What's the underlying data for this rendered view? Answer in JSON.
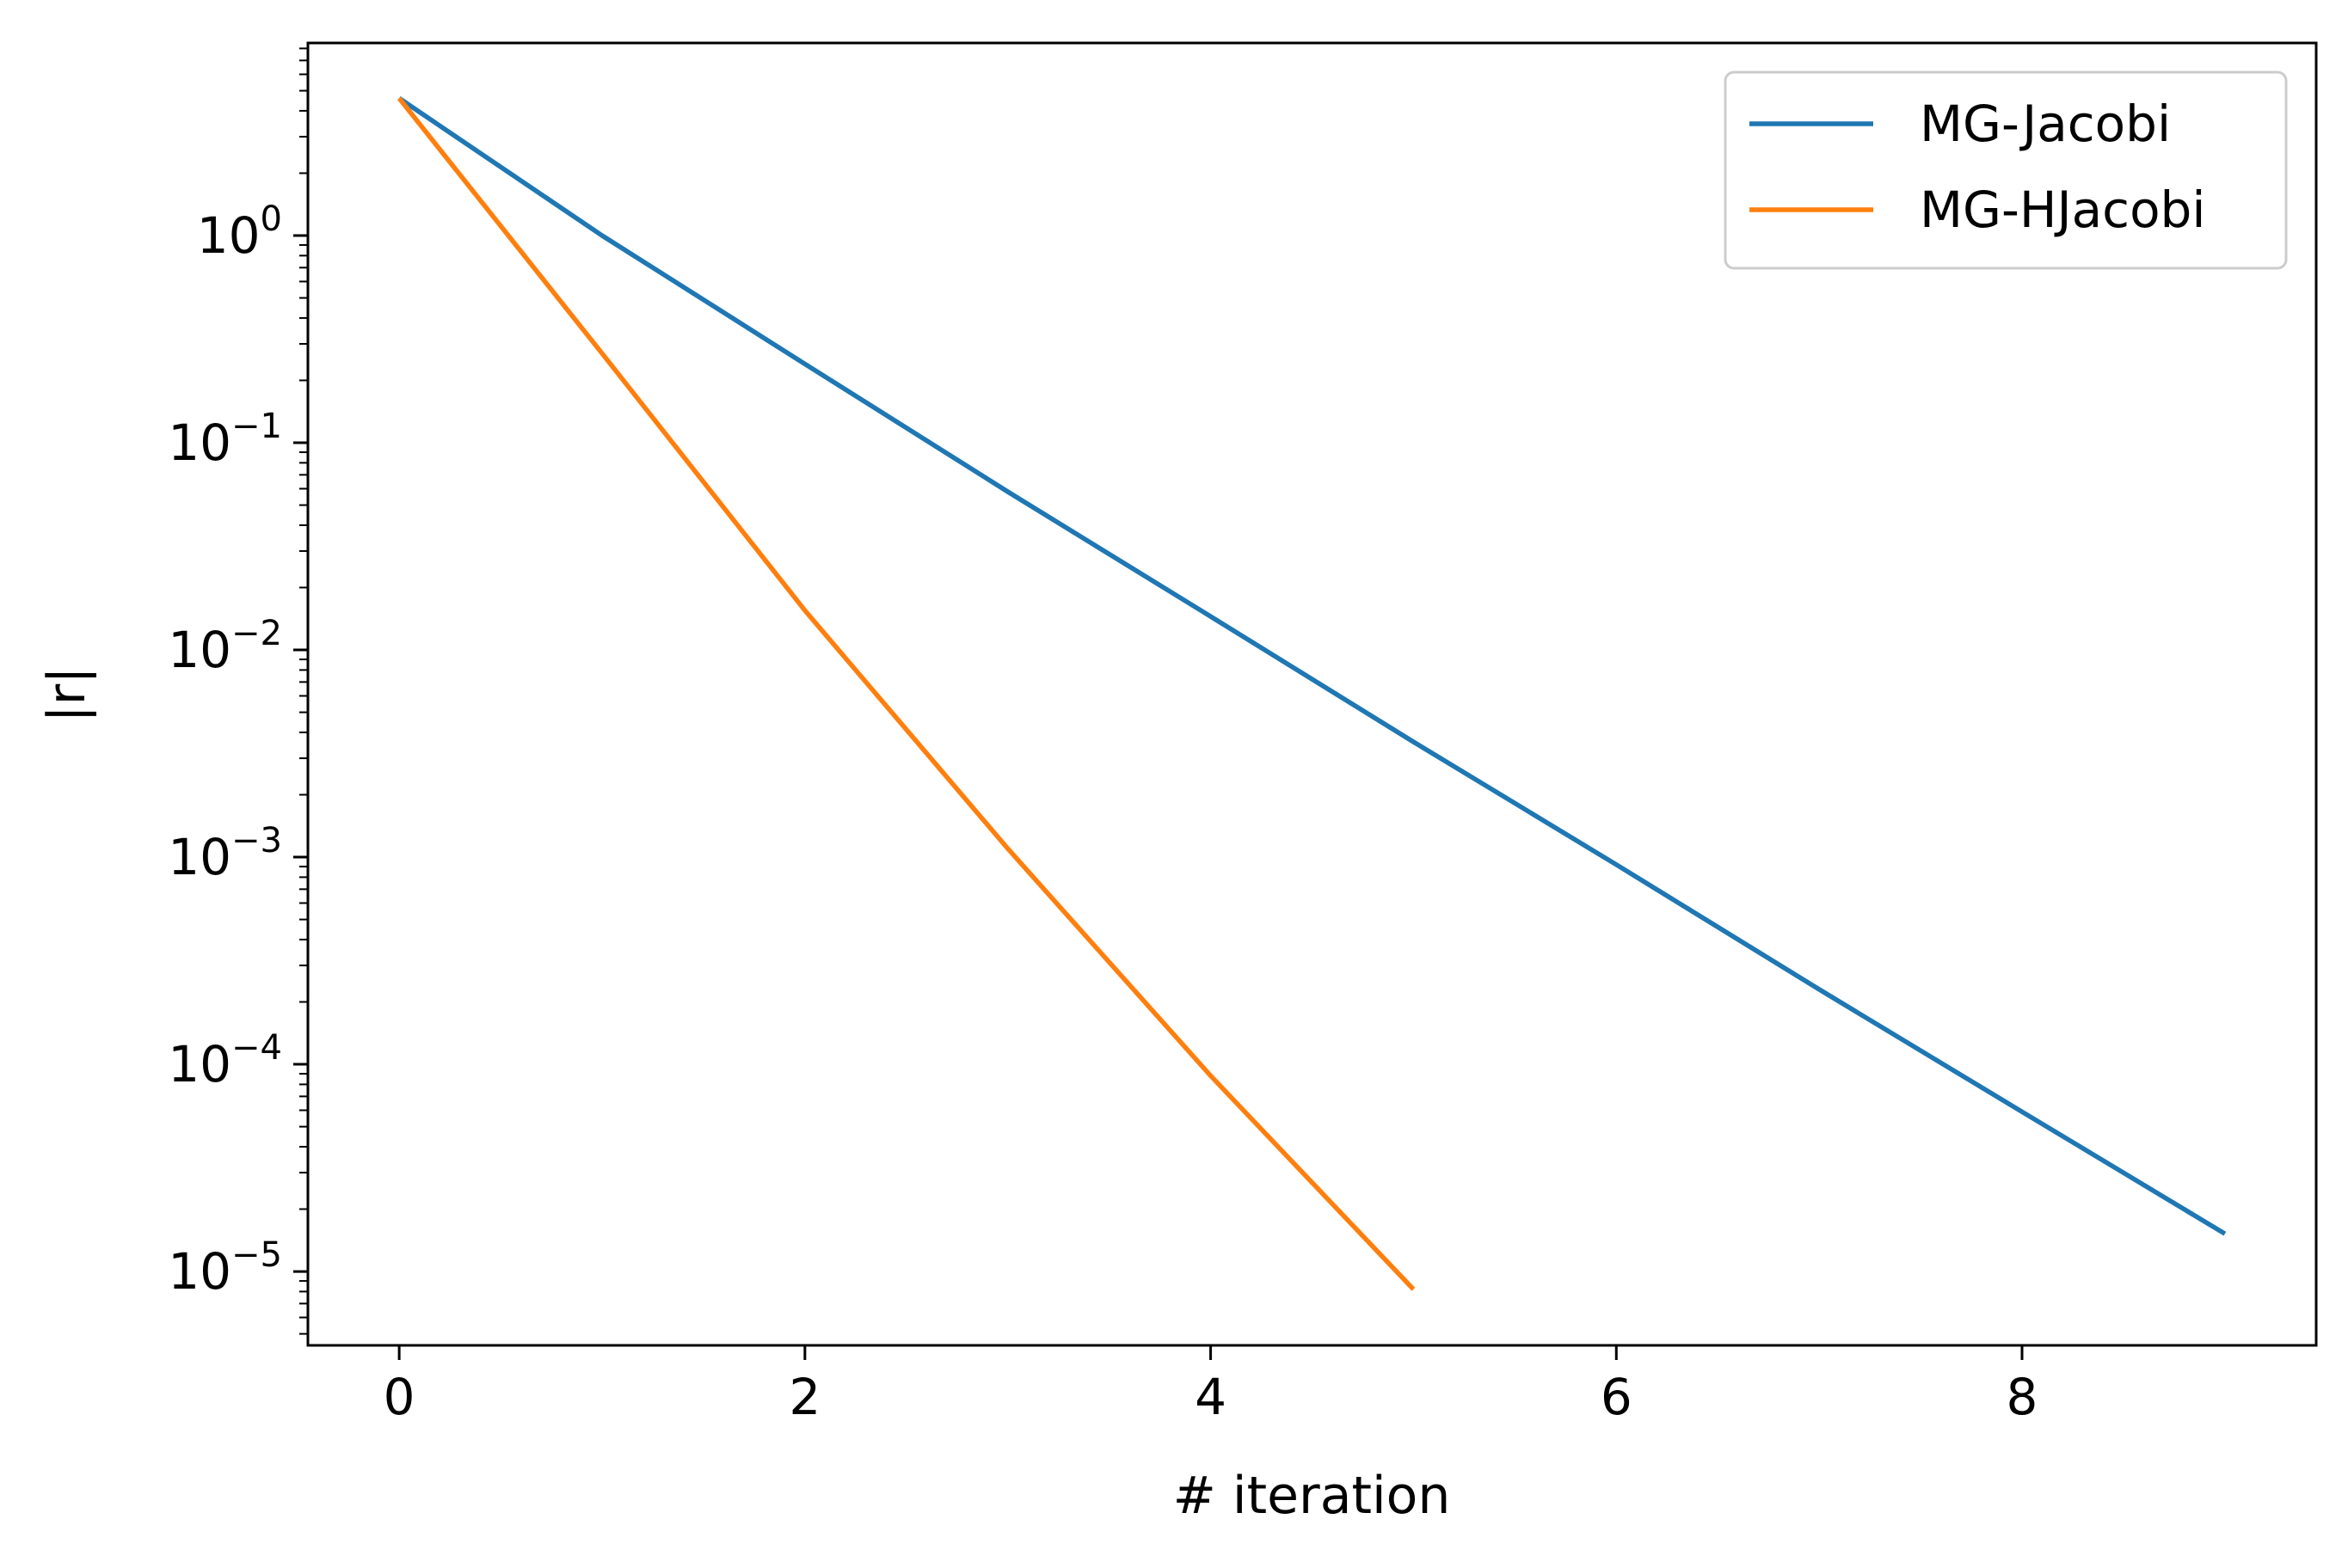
{
  "chart_data": {
    "type": "line",
    "title": "",
    "xlabel": "# iteration",
    "ylabel": "|r|",
    "xlim": [
      -0.45,
      9.45
    ],
    "ylim": [
      4.4e-06,
      8.5
    ],
    "yscale": "log",
    "grid": false,
    "legend_position": "top-right",
    "x_ticks": [
      0,
      2,
      4,
      6,
      8
    ],
    "x_tick_labels": [
      "0",
      "2",
      "4",
      "6",
      "8"
    ],
    "y_ticks": [
      {
        "value": 1,
        "base": "10",
        "exp": "0"
      },
      {
        "value": 0.1,
        "base": "10",
        "exp": "−1"
      },
      {
        "value": 0.01,
        "base": "10",
        "exp": "−2"
      },
      {
        "value": 0.001,
        "base": "10",
        "exp": "−3"
      },
      {
        "value": 0.0001,
        "base": "10",
        "exp": "−4"
      },
      {
        "value": 1e-05,
        "base": "10",
        "exp": "−5"
      }
    ],
    "series": [
      {
        "name": "MG-Jacobi",
        "color": "#1f77b4",
        "x": [
          0,
          1,
          2,
          3,
          4,
          5,
          6,
          7,
          8,
          9
        ],
        "y": [
          4.6,
          1.0,
          0.24,
          0.058,
          0.0145,
          0.0036,
          0.00092,
          0.00023,
          5.9e-05,
          1.52e-05
        ]
      },
      {
        "name": "MG-HJacobi",
        "color": "#ff7f0e",
        "x": [
          0,
          1,
          2,
          3,
          4,
          5
        ],
        "y": [
          4.6,
          0.27,
          0.0155,
          0.0011,
          8.8e-05,
          8.2e-06
        ]
      }
    ]
  }
}
